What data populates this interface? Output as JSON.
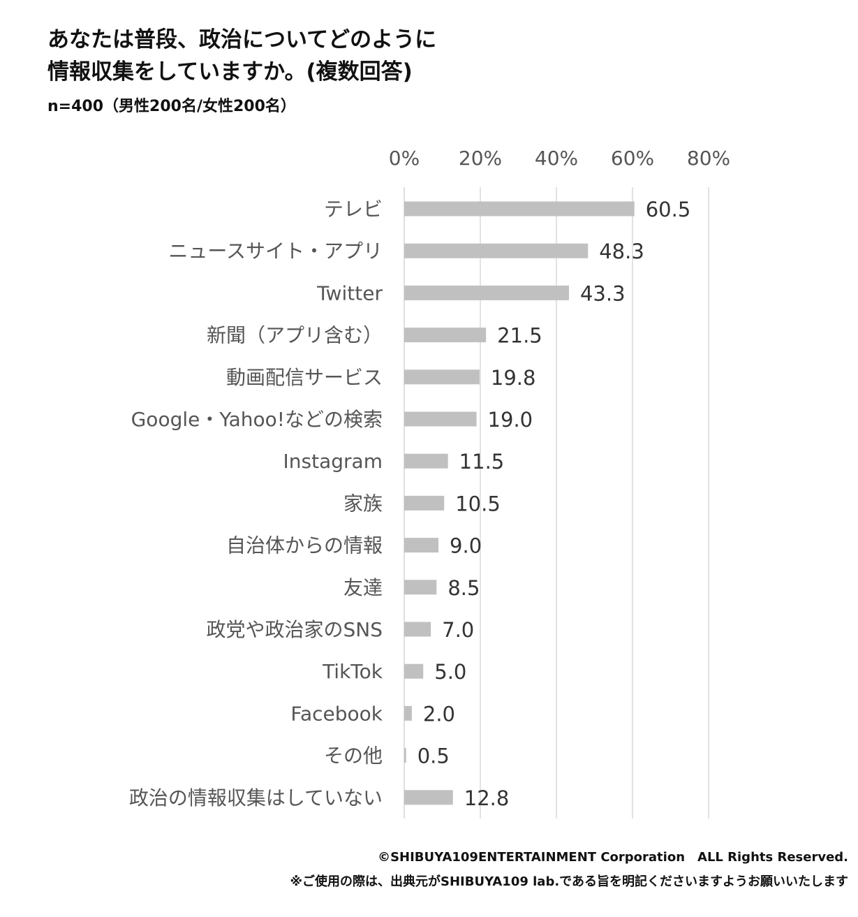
{
  "chart_data": {
    "type": "bar",
    "orientation": "horizontal",
    "title_lines": [
      "あなたは普段、政治についてどのように",
      "情報収集をしていますか。(複数回答)"
    ],
    "subtitle": "n=400（男性200名/女性200名）",
    "x_ticks": [
      "0%",
      "20%",
      "40%",
      "60%",
      "80%"
    ],
    "xlim": [
      0,
      80
    ],
    "grid": true,
    "bar_color": "#c0c0c0",
    "categories": [
      "テレビ",
      "ニュースサイト・アプリ",
      "Twitter",
      "新聞（アプリ含む）",
      "動画配信サービス",
      "Google・Yahoo!などの検索",
      "Instagram",
      "家族",
      "自治体からの情報",
      "友達",
      "政党や政治家のSNS",
      "TikTok",
      "Facebook",
      "その他",
      "政治の情報収集はしていない"
    ],
    "values": [
      60.5,
      48.3,
      43.3,
      21.5,
      19.8,
      19.0,
      11.5,
      10.5,
      9.0,
      8.5,
      7.0,
      5.0,
      2.0,
      0.5,
      12.8
    ],
    "value_labels": [
      "60.5",
      "48.3",
      "43.3",
      "21.5",
      "19.8",
      "19.0",
      "11.5",
      "10.5",
      "9.0",
      "8.5",
      "7.0",
      "5.0",
      "2.0",
      "0.5",
      "12.8"
    ]
  },
  "footer": {
    "copyright": "©SHIBUYA109ENTERTAINMENT Corporation　ALL Rights Reserved.",
    "notice": "※ご使用の際は、出典元がSHIBUYA109 lab.である旨を明記くださいますようお願いいたします"
  }
}
